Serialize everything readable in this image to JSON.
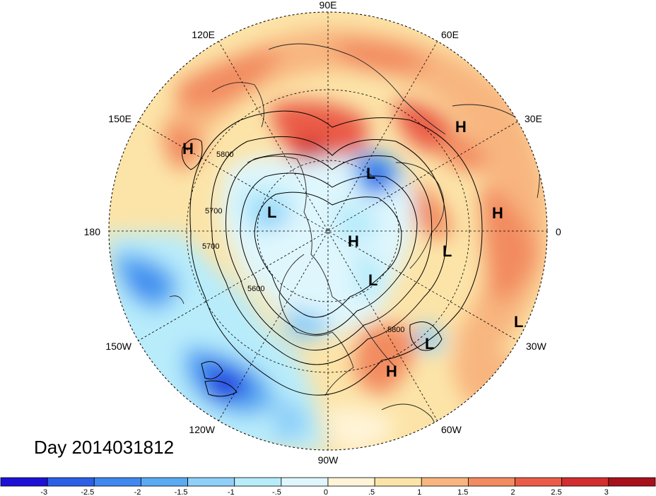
{
  "title": "Day 2014031812",
  "longitude_labels": {
    "lon_90e": "90E",
    "lon_60e": "60E",
    "lon_30e": "30E",
    "lon_0": "0",
    "lon_30w": "30W",
    "lon_60w": "60W",
    "lon_90w": "90W",
    "lon_120w": "120W",
    "lon_150w": "150W",
    "lon_180": "180",
    "lon_150e": "150E",
    "lon_120e": "120E"
  },
  "pressure_centers": [
    {
      "type": "H",
      "label": "H"
    },
    {
      "type": "H",
      "label": "H"
    },
    {
      "type": "H",
      "label": "H"
    },
    {
      "type": "H",
      "label": "H"
    },
    {
      "type": "H",
      "label": "H"
    },
    {
      "type": "L",
      "label": "L"
    },
    {
      "type": "L",
      "label": "L"
    },
    {
      "type": "L",
      "label": "L"
    },
    {
      "type": "L",
      "label": "L"
    },
    {
      "type": "L",
      "label": "L"
    },
    {
      "type": "L",
      "label": "L"
    }
  ],
  "contour_labels": [
    "5800",
    "5700",
    "5700",
    "5600",
    "5800"
  ],
  "colorbar": {
    "colors": [
      "#1f10d8",
      "#2c5fe6",
      "#3f88ef",
      "#5aaaf3",
      "#8fcff8",
      "#b8ecfb",
      "#dff6fd",
      "#fff4d8",
      "#fce4a8",
      "#f8b57f",
      "#f28b60",
      "#ea5c47",
      "#d32d2f",
      "#a8101c"
    ],
    "ticks": [
      "-3",
      "-2.5",
      "-2",
      "-1.5",
      "-1",
      "-.5",
      "0",
      ".5",
      "1",
      "1.5",
      "2",
      "2.5",
      "3"
    ]
  }
}
